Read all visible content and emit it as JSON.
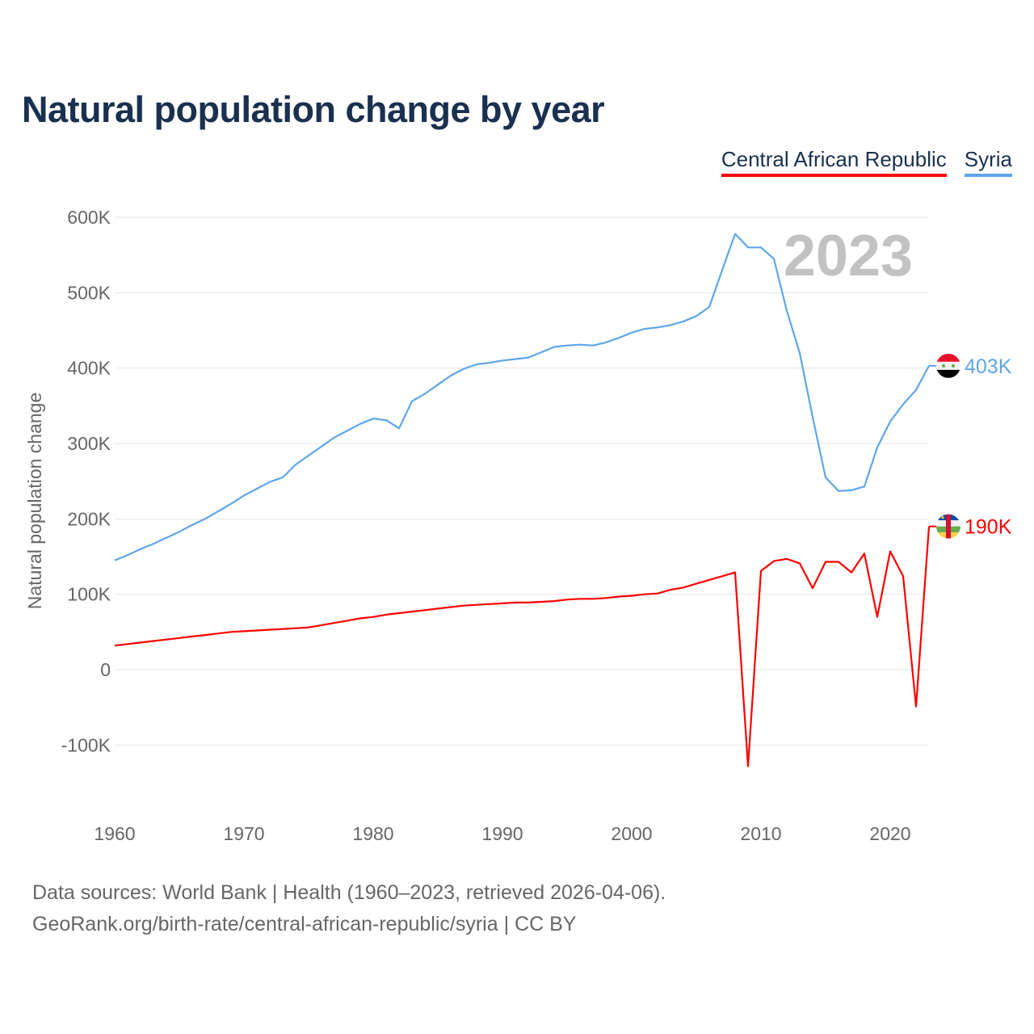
{
  "title": "Natural population change by year",
  "legend": [
    {
      "name": "Central African Republic",
      "color": "#ff0000"
    },
    {
      "name": "Syria",
      "color": "#5ea6ea"
    }
  ],
  "footer": {
    "line1": "Data sources: World Bank | Health (1960–2023, retrieved 2026-04-06).",
    "line2": "GeoRank.org/birth-rate/central-african-republic/syria | CC BY"
  },
  "chart_data": {
    "type": "line",
    "title": "Natural population change by year",
    "xlabel": "",
    "ylabel": "Natural population change",
    "year_label": "2023",
    "xlim": [
      1960,
      2023
    ],
    "ylim": [
      -100000,
      600000
    ],
    "x_ticks": [
      "1960",
      "1970",
      "1980",
      "1990",
      "2000",
      "2010",
      "2020"
    ],
    "y_ticks": [
      {
        "v": 600000,
        "l": "600K"
      },
      {
        "v": 500000,
        "l": "500K"
      },
      {
        "v": 400000,
        "l": "400K"
      },
      {
        "v": 300000,
        "l": "300K"
      },
      {
        "v": 200000,
        "l": "200K"
      },
      {
        "v": 100000,
        "l": "100K"
      },
      {
        "v": 0,
        "l": "0"
      },
      {
        "v": -100000,
        "l": "-100K"
      }
    ],
    "grid": true,
    "legend_position": "top-right",
    "x_start": 1960,
    "series": [
      {
        "name": "Central African Republic",
        "color": "#ff0000",
        "end_label": "190K",
        "flag": "central-african-republic-flag",
        "values_k": [
          32,
          34,
          36,
          38,
          40,
          42,
          44,
          46,
          48,
          50,
          51,
          52,
          53,
          54,
          55,
          56,
          59,
          62,
          65,
          68,
          70,
          73,
          75,
          77,
          79,
          81,
          83,
          85,
          86,
          87,
          88,
          89,
          89,
          90,
          91,
          93,
          94,
          94,
          95,
          97,
          98,
          100,
          101,
          106,
          109,
          114,
          119,
          124,
          129,
          -128,
          131,
          144,
          147,
          141,
          108,
          143,
          143,
          129,
          154,
          70,
          157,
          124,
          -49,
          190
        ]
      },
      {
        "name": "Syria",
        "color": "#5ea6ea",
        "end_label": "403K",
        "flag": "syria-flag",
        "values_k": [
          145,
          152,
          160,
          167,
          175,
          183,
          192,
          200,
          210,
          220,
          231,
          240,
          249,
          255,
          272,
          284,
          296,
          308,
          317,
          326,
          333,
          331,
          320,
          356,
          366,
          378,
          390,
          399,
          405,
          407,
          410,
          412,
          414,
          421,
          428,
          430,
          431,
          430,
          434,
          440,
          447,
          452,
          454,
          457,
          462,
          469,
          481,
          530,
          578,
          560,
          560,
          545,
          476,
          420,
          335,
          255,
          237,
          238,
          243,
          295,
          329,
          352,
          371,
          403
        ]
      }
    ]
  }
}
